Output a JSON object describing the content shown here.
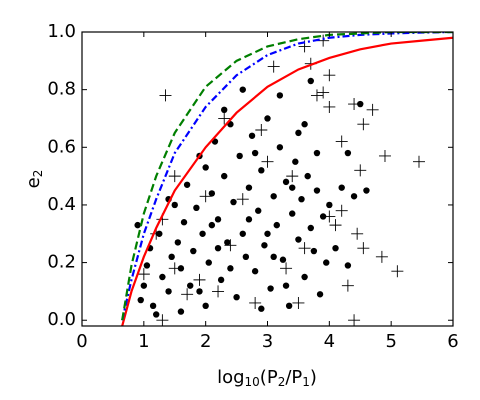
{
  "chart_data": {
    "type": "scatter",
    "x_label_parts": [
      "log",
      "10",
      "(P",
      "2",
      "/P",
      "1",
      ")"
    ],
    "y_label_parts": [
      "e",
      "2"
    ],
    "xlim": [
      0,
      6
    ],
    "ylim": [
      -0.02,
      1.0
    ],
    "xticks": [
      0,
      1,
      2,
      3,
      4,
      5,
      6
    ],
    "yticks": [
      {
        "value": 0,
        "label": "0.0"
      },
      {
        "value": 0.2,
        "label": "0.2"
      },
      {
        "value": 0.4,
        "label": "0.4"
      },
      {
        "value": 0.6,
        "label": "0.6"
      },
      {
        "value": 0.8,
        "label": "0.8"
      },
      {
        "value": 1.0,
        "label": "1.0"
      }
    ],
    "curve_x": [
      0.65,
      0.8,
      1,
      1.2,
      1.5,
      2,
      2.5,
      3,
      3.5,
      4,
      4.5,
      5,
      5.5,
      6
    ],
    "curves": [
      {
        "color": "#ff0000",
        "dash": "none",
        "values": [
          -0.02,
          0.1,
          0.22,
          0.32,
          0.45,
          0.6,
          0.72,
          0.81,
          0.87,
          0.91,
          0.94,
          0.96,
          0.97,
          0.98
        ]
      },
      {
        "color": "#0000ff",
        "dash": "7 3 2 3",
        "values": [
          0,
          0.14,
          0.3,
          0.42,
          0.58,
          0.74,
          0.85,
          0.92,
          0.96,
          0.98,
          0.99,
          0.995,
          0.998,
          1.0
        ]
      },
      {
        "color": "#007f00",
        "dash": "8 4",
        "values": [
          0,
          0.19,
          0.37,
          0.5,
          0.65,
          0.81,
          0.9,
          0.95,
          0.975,
          0.99,
          0.995,
          1.0,
          1.0,
          1.0
        ]
      }
    ],
    "points": [
      {
        "marker": "dot",
        "color": "#000000",
        "x": [
          0.9,
          0.95,
          1.0,
          1.05,
          1.1,
          1.15,
          1.25,
          1.3,
          1.4,
          1.45,
          1.5,
          1.55,
          1.6,
          1.65,
          1.7,
          1.75,
          1.8,
          1.85,
          1.9,
          1.95,
          2.0,
          2.05,
          2.1,
          2.15,
          2.2,
          2.25,
          2.3,
          2.35,
          2.4,
          2.45,
          2.5,
          2.55,
          2.6,
          2.65,
          2.7,
          2.75,
          2.8,
          2.85,
          2.9,
          2.95,
          3.0,
          3.05,
          3.1,
          3.15,
          3.2,
          3.25,
          3.3,
          3.35,
          3.4,
          3.45,
          3.5,
          3.55,
          3.6,
          3.65,
          3.7,
          3.75,
          3.8,
          3.85,
          3.9,
          3.95,
          4.0,
          4.1,
          4.2,
          4.3,
          4.5,
          3.7,
          3.2,
          2.6,
          1.2,
          2.0,
          2.9,
          3.5,
          2.3,
          1.9,
          2.7,
          3.1,
          3.3,
          2.2,
          3.6,
          4.3,
          1.6,
          2.4,
          3.0,
          3.4,
          2.8,
          1.4,
          2.1,
          3.8,
          4.6,
          4.4
        ],
        "values": [
          0.33,
          0.07,
          0.12,
          0.19,
          0.25,
          0.05,
          0.3,
          0.15,
          0.1,
          0.22,
          0.4,
          0.27,
          0.18,
          0.34,
          0.47,
          0.12,
          0.24,
          0.39,
          0.1,
          0.3,
          0.53,
          0.2,
          0.44,
          0.62,
          0.35,
          0.14,
          0.5,
          0.27,
          0.68,
          0.41,
          0.08,
          0.57,
          0.3,
          0.22,
          0.46,
          0.64,
          0.17,
          0.38,
          0.52,
          0.26,
          0.7,
          0.11,
          0.43,
          0.33,
          0.6,
          0.21,
          0.48,
          0.05,
          0.37,
          0.55,
          0.28,
          0.42,
          0.15,
          0.5,
          0.32,
          0.24,
          0.45,
          0.09,
          0.36,
          0.2,
          0.4,
          0.25,
          0.46,
          0.19,
          0.75,
          0.83,
          0.78,
          0.8,
          0.02,
          0.05,
          0.04,
          0.65,
          0.73,
          0.57,
          0.35,
          0.22,
          0.12,
          0.25,
          0.68,
          0.58,
          0.03,
          0.18,
          0.3,
          0.46,
          0.58,
          0.42,
          0.33,
          0.58,
          0.45,
          0.43
        ]
      },
      {
        "marker": "plus",
        "color": "#000000",
        "x": [
          1.35,
          1.3,
          1.0,
          1.2,
          1.3,
          1.5,
          1.7,
          1.9,
          2.0,
          2.4,
          2.6,
          2.8,
          3.0,
          3.3,
          3.6,
          3.7,
          3.9,
          3.8,
          3.9,
          4.0,
          4.0,
          4.4,
          4.7,
          4.55,
          4.2,
          4.5,
          4.9,
          5.45,
          4.45,
          4.55,
          4.85,
          5.1,
          4.4,
          4.3,
          3.5,
          4.0,
          4.2,
          3.4,
          2.9,
          3.1,
          2.3,
          1.5,
          2.2,
          4.1,
          3.6
        ],
        "values": [
          0.78,
          0.0,
          0.16,
          0.3,
          0.35,
          0.5,
          0.09,
          0.14,
          0.43,
          0.26,
          0.42,
          0.06,
          0.55,
          0.18,
          0.95,
          0.89,
          0.97,
          0.78,
          0.79,
          0.85,
          0.74,
          0.75,
          0.73,
          0.68,
          0.62,
          0.52,
          0.57,
          0.55,
          0.3,
          0.25,
          0.22,
          0.17,
          0.0,
          0.12,
          0.06,
          0.36,
          0.38,
          0.5,
          0.66,
          0.88,
          0.7,
          0.18,
          0.1,
          0.33,
          0.25
        ]
      }
    ]
  }
}
